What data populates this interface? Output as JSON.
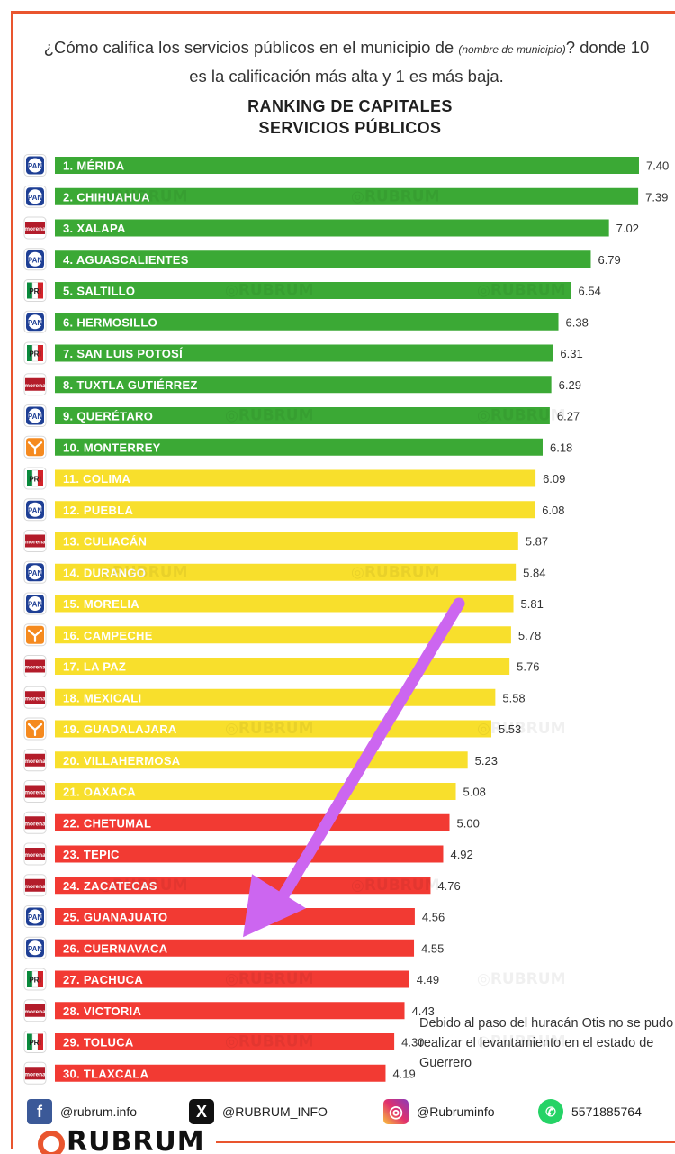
{
  "header": {
    "question_part1": "¿Cómo califica los servicios públicos en el municipio de ",
    "question_small": "(nombre de municipio)",
    "question_part2": "? donde 10 es la calificación más alta y 1 es más baja.",
    "title_line1": "RANKING DE CAPITALES",
    "title_line2": "SERVICIOS PÚBLICOS"
  },
  "chart_data": {
    "type": "bar",
    "orientation": "horizontal",
    "title": "RANKING DE CAPITALES SERVICIOS PÚBLICOS",
    "categories": [
      "1. MÉRIDA",
      "2. CHIHUAHUA",
      "3. XALAPA",
      "4. AGUASCALIENTES",
      "5. SALTILLO",
      "6. HERMOSILLO",
      "7. SAN LUIS POTOSÍ",
      "8. TUXTLA GUTIÉRREZ",
      "9. QUERÉTARO",
      "10. MONTERREY",
      "11. COLIMA",
      "12. PUEBLA",
      "13. CULIACÁN",
      "14. DURANGO",
      "15. MORELIA",
      "16. CAMPECHE",
      "17. LA PAZ",
      "18. MEXICALI",
      "19. GUADALAJARA",
      "20. VILLAHERMOSA",
      "21. OAXACA",
      "22. CHETUMAL",
      "23. TEPIC",
      "24. ZACATECAS",
      "25. GUANAJUATO",
      "26. CUERNAVACA",
      "27. PACHUCA",
      "28. VICTORIA",
      "29. TOLUCA",
      "30. TLAXCALA"
    ],
    "values": [
      7.4,
      7.39,
      7.02,
      6.79,
      6.54,
      6.38,
      6.31,
      6.29,
      6.27,
      6.18,
      6.09,
      6.08,
      5.87,
      5.84,
      5.81,
      5.78,
      5.76,
      5.58,
      5.53,
      5.23,
      5.08,
      5.0,
      4.92,
      4.76,
      4.56,
      4.55,
      4.49,
      4.43,
      4.3,
      4.19
    ],
    "value_labels": [
      "7.40",
      "7.39",
      "7.02",
      "6.79",
      "6.54",
      "6.38",
      "6.31",
      "6.29",
      "6.27",
      "6.18",
      "6.09",
      "6.08",
      "5.87",
      "5.84",
      "5.81",
      "5.78",
      "5.76",
      "5.58",
      "5.53",
      "5.23",
      "5.08",
      "5.00",
      "4.92",
      "4.76",
      "4.56",
      "4.55",
      "4.49",
      "4.43",
      "4.30",
      "4.19"
    ],
    "parties": [
      "PAN",
      "PAN",
      "morena",
      "PAN",
      "PRI",
      "PAN",
      "PRI",
      "morena",
      "PAN",
      "MC",
      "PRI",
      "PAN",
      "morena",
      "PAN",
      "PAN",
      "MC",
      "morena",
      "morena",
      "MC",
      "morena",
      "morena",
      "morena",
      "morena",
      "morena",
      "PAN",
      "PAN",
      "PRI",
      "morena",
      "PRI",
      "morena"
    ],
    "bar_colors": [
      "green",
      "green",
      "green",
      "green",
      "green",
      "green",
      "green",
      "green",
      "green",
      "green",
      "yellow",
      "yellow",
      "yellow",
      "yellow",
      "yellow",
      "yellow",
      "yellow",
      "yellow",
      "yellow",
      "yellow",
      "yellow",
      "red",
      "red",
      "red",
      "red",
      "red",
      "red",
      "red",
      "red",
      "red"
    ],
    "colors": {
      "green": "#3ba935",
      "yellow": "#f8df2c",
      "red": "#f23a33"
    },
    "highlight_category": "26. CUERNAVACA",
    "arrow_color": "#cc66f0"
  },
  "party_colors": {
    "PAN": "#1e3f95",
    "morena": "#b31c2a",
    "PRI": "#0a8a3c",
    "MC": "#f58a1f"
  },
  "watermark": "RUBRUM",
  "footnote": "Debido al paso del huracán Otis no se pudo realizar el levantamiento en el estado de Guerrero",
  "social": {
    "facebook": "@rubrum.info",
    "x": "@RUBRUM_INFO",
    "instagram": "@Rubruminfo",
    "whatsapp": "5571885764"
  },
  "logo_text": "RUBRUM"
}
